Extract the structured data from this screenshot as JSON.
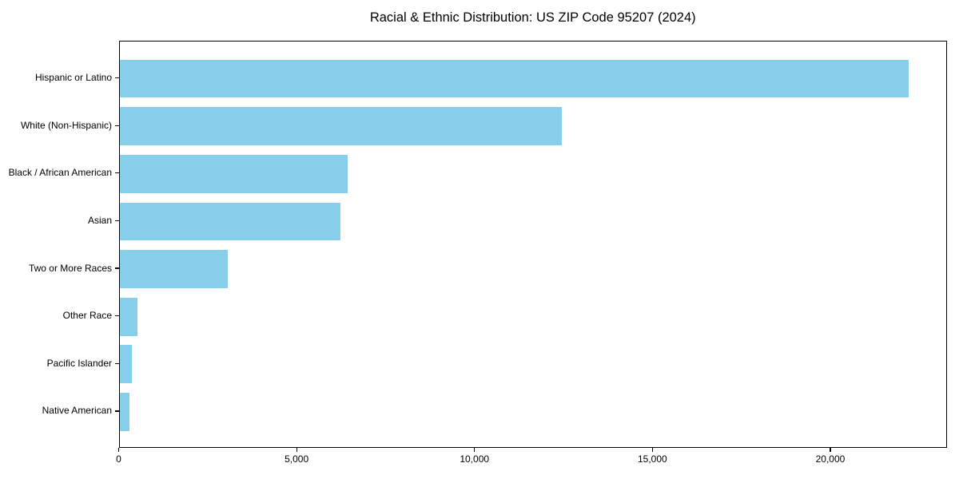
{
  "chart_data": {
    "type": "bar",
    "orientation": "horizontal",
    "title": "Racial & Ethnic Distribution: US ZIP Code 95207 (2024)",
    "categories": [
      "Hispanic or Latino",
      "White (Non-Hispanic)",
      "Black / African American",
      "Asian",
      "Two or More Races",
      "Other Race",
      "Pacific Islander",
      "Native American"
    ],
    "values": [
      22180,
      12430,
      6410,
      6220,
      3050,
      500,
      350,
      270
    ],
    "xlabel": "",
    "ylabel": "",
    "xlim": [
      0,
      23280
    ],
    "xticks": [
      0,
      5000,
      10000,
      15000,
      20000
    ],
    "xtick_labels": [
      "0",
      "5,000",
      "10,000",
      "15,000",
      "20,000"
    ],
    "bar_color": "#87CEEB",
    "background_color": "#ffffff",
    "spine_color": "#000000",
    "grid": false,
    "legend": null
  }
}
